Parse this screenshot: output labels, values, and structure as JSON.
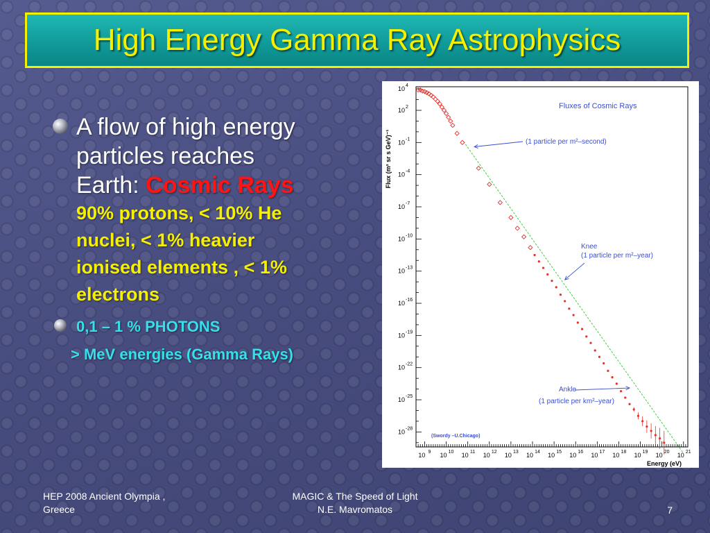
{
  "slide": {
    "title": "High Energy Gamma Ray Astrophysics",
    "bullets": [
      {
        "line1": "A flow of high energy",
        "line2": "particles reaches",
        "line3_prefix": "Earth:",
        "highlight": "Cosmic Rays",
        "detail_lines": [
          "90% protons, < 10% He",
          "nuclei,  < 1% heavier",
          "ionised  elements , < 1%",
          "electrons"
        ]
      },
      {
        "text": "0,1 – 1 % PHOTONS",
        "subtext_marker": ">",
        "subtext": "MeV energies (Gamma Rays)"
      }
    ]
  },
  "footer": {
    "left_line1": "HEP 2008 Ancient Olympia ,",
    "left_line2": "Greece",
    "center_line1": "MAGIC & The Speed of Light",
    "center_line2": "N.E. Mavromatos",
    "page_number": "7"
  },
  "chart_data": {
    "type": "scatter",
    "title": "Fluxes of Cosmic Rays",
    "xlabel": "Energy (eV)",
    "ylabel": "Flux (m² sr s GeV)⁻¹",
    "x_scale": "log",
    "y_scale": "log",
    "xlim_log10": [
      8.6,
      21.2
    ],
    "ylim_log10": [
      -29.4,
      4.2
    ],
    "x_tick_exponents": [
      9,
      10,
      11,
      12,
      13,
      14,
      15,
      16,
      17,
      18,
      19,
      20,
      21
    ],
    "y_tick_exponents": [
      4,
      2,
      -1,
      -4,
      -7,
      -10,
      -13,
      -16,
      -19,
      -22,
      -25,
      -28
    ],
    "grid": false,
    "legend": "none",
    "marker_color": "#e8302a",
    "fit_line_color": "#3fcf3f",
    "annotation_color": "#3b4fcf",
    "annotations": [
      {
        "text": "(1 particle per m²–second)",
        "point_log10": [
          11.3,
          -1.4
        ]
      },
      {
        "text_lines": [
          "Knee",
          "(1 particle per m²–year)"
        ],
        "point_log10": [
          15.5,
          -13.8
        ]
      },
      {
        "text_lines": [
          "Ankle",
          "(1 particle per km²–year)"
        ],
        "point_log10": [
          18.5,
          -23.9
        ]
      }
    ],
    "credit": "(Swordy –U.Chicago)",
    "series": [
      {
        "marker": "open-diamond",
        "points_log10": [
          [
            8.7,
            3.9
          ],
          [
            8.8,
            3.9
          ],
          [
            8.9,
            3.8
          ],
          [
            9.0,
            3.75
          ],
          [
            9.1,
            3.65
          ],
          [
            9.2,
            3.55
          ],
          [
            9.3,
            3.4
          ],
          [
            9.4,
            3.25
          ],
          [
            9.5,
            3.05
          ],
          [
            9.6,
            2.85
          ],
          [
            9.7,
            2.6
          ],
          [
            9.8,
            2.3
          ],
          [
            9.9,
            2.0
          ],
          [
            10.0,
            1.7
          ],
          [
            10.1,
            1.35
          ],
          [
            10.2,
            1.0
          ],
          [
            10.3,
            0.6
          ],
          [
            10.5,
            -0.15
          ],
          [
            10.75,
            -1.0
          ],
          [
            11.5,
            -3.4
          ],
          [
            12.0,
            -4.9
          ],
          [
            12.5,
            -6.6
          ],
          [
            13.0,
            -8.0
          ],
          [
            13.3,
            -9.0
          ],
          [
            13.6,
            -9.8
          ],
          [
            13.9,
            -10.8
          ]
        ]
      },
      {
        "marker": "filled-dot",
        "points_log10": [
          [
            14.1,
            -11.5
          ],
          [
            14.3,
            -12.1
          ],
          [
            14.5,
            -12.7
          ],
          [
            14.7,
            -13.3
          ],
          [
            14.9,
            -13.9
          ],
          [
            15.1,
            -14.5
          ],
          [
            15.3,
            -15.2
          ],
          [
            15.5,
            -15.8
          ],
          [
            15.7,
            -16.5
          ],
          [
            15.9,
            -17.1
          ],
          [
            16.1,
            -17.8
          ],
          [
            16.3,
            -18.4
          ],
          [
            16.5,
            -19.1
          ],
          [
            16.7,
            -19.7
          ],
          [
            16.9,
            -20.4
          ],
          [
            17.1,
            -21.0
          ],
          [
            17.3,
            -21.6
          ],
          [
            17.5,
            -22.3
          ],
          [
            17.7,
            -22.9
          ],
          [
            17.9,
            -23.5
          ],
          [
            18.1,
            -24.2
          ],
          [
            18.3,
            -24.8
          ],
          [
            18.5,
            -25.4
          ],
          [
            18.7,
            -25.9
          ],
          [
            18.9,
            -26.5
          ],
          [
            19.1,
            -27.0
          ],
          [
            19.3,
            -27.5
          ],
          [
            19.5,
            -27.9
          ],
          [
            19.7,
            -28.3
          ],
          [
            19.9,
            -28.6
          ],
          [
            20.1,
            -29.0
          ]
        ]
      }
    ]
  }
}
